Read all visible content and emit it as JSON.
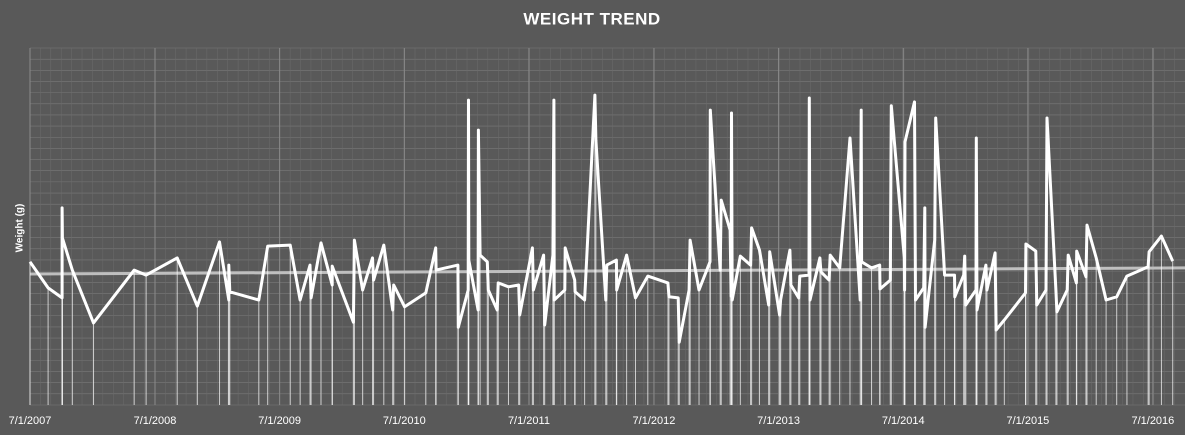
{
  "chart_data": {
    "type": "line",
    "title": "WEIGHT TREND",
    "y_label": "Weight (g)",
    "xlim": [
      "2007-07-01",
      "2016-10-03"
    ],
    "xticks": [
      {
        "value": "2007-07-01",
        "label": "7/1/2007"
      },
      {
        "value": "2008-07-01",
        "label": "7/1/2008"
      },
      {
        "value": "2009-07-01",
        "label": "7/1/2009"
      },
      {
        "value": "2010-07-01",
        "label": "7/1/2010"
      },
      {
        "value": "2011-07-01",
        "label": "7/1/2011"
      },
      {
        "value": "2012-07-01",
        "label": "7/1/2012"
      },
      {
        "value": "2013-07-01",
        "label": "7/1/2013"
      },
      {
        "value": "2014-07-01",
        "label": "7/1/2014"
      },
      {
        "value": "2015-07-01",
        "label": "7/1/2015"
      },
      {
        "value": "2016-07-01",
        "label": "7/1/2016"
      }
    ],
    "ylim": [
      0,
      100
    ],
    "grid": true,
    "drop_lines": true,
    "series": [
      {
        "color": "#ffffff",
        "x": [
          "2007-07-01",
          "2007-08-23",
          "2007-10-03",
          "2007-10-03",
          "2007-10-04",
          "2007-11-02",
          "2008-01-03",
          "2008-05-01",
          "2008-06-05",
          "2008-09-04",
          "2008-11-02",
          "2009-01-06",
          "2009-02-02",
          "2009-02-02",
          "2009-02-05",
          "2009-05-01",
          "2009-05-27",
          "2009-08-01",
          "2009-08-30",
          "2009-09-28",
          "2009-10-01",
          "2009-10-30",
          "2009-12-02",
          "2009-12-02",
          "2010-02-02",
          "2010-02-05",
          "2010-03-01",
          "2010-03-30",
          "2010-04-02",
          "2010-05-02",
          "2010-05-28",
          "2010-05-31",
          "2010-07-02",
          "2010-09-02",
          "2010-10-01",
          "2010-10-02",
          "2010-12-05",
          "2010-12-06",
          "2011-01-04",
          "2011-01-05",
          "2011-01-06",
          "2011-02-02",
          "2011-02-03",
          "2011-02-08",
          "2011-03-01",
          "2011-03-04",
          "2011-03-30",
          "2011-04-02",
          "2011-05-02",
          "2011-06-01",
          "2011-06-04",
          "2011-07-11",
          "2011-07-14",
          "2011-08-13",
          "2011-08-16",
          "2011-09-09",
          "2011-09-12",
          "2011-09-13",
          "2011-10-14",
          "2011-10-15",
          "2011-11-12",
          "2011-11-13",
          "2011-12-11",
          "2012-01-10",
          "2012-01-13",
          "2012-02-11",
          "2012-02-14",
          "2012-03-13",
          "2012-03-14",
          "2012-04-12",
          "2012-05-08",
          "2012-06-13",
          "2012-08-11",
          "2012-08-14",
          "2012-09-10",
          "2012-09-13",
          "2012-10-12",
          "2012-10-15",
          "2012-11-10",
          "2012-12-12",
          "2012-12-13",
          "2013-01-11",
          "2013-01-14",
          "2013-02-09",
          "2013-02-12",
          "2013-02-13",
          "2013-02-15",
          "2013-03-11",
          "2013-04-10",
          "2013-04-13",
          "2013-05-06",
          "2013-06-02",
          "2013-06-05",
          "2013-07-04",
          "2013-07-07",
          "2013-08-03",
          "2013-08-06",
          "2013-08-29",
          "2013-09-01",
          "2013-09-28",
          "2013-09-29",
          "2013-10-01",
          "2013-10-30",
          "2013-11-02",
          "2013-11-26",
          "2013-11-29",
          "2013-12-27",
          "2014-01-26",
          "2014-02-25",
          "2014-02-28",
          "2014-03-01",
          "2014-03-30",
          "2014-04-23",
          "2014-04-24",
          "2014-05-24",
          "2014-05-27",
          "2014-07-04",
          "2014-07-05",
          "2014-07-06",
          "2014-08-03",
          "2014-08-06",
          "2014-08-30",
          "2014-09-02",
          "2014-09-03",
          "2014-10-01",
          "2014-10-04",
          "2014-10-30",
          "2014-11-28",
          "2014-11-29",
          "2014-12-25",
          "2014-12-28",
          "2014-12-31",
          "2015-01-30",
          "2015-01-31",
          "2015-02-02",
          "2015-02-28",
          "2015-03-03",
          "2015-03-27",
          "2015-03-30",
          "2015-04-23",
          "2015-06-24",
          "2015-06-25",
          "2015-07-24",
          "2015-07-27",
          "2015-08-23",
          "2015-08-26",
          "2015-09-21",
          "2015-09-24",
          "2015-10-24",
          "2015-10-27",
          "2015-11-20",
          "2015-11-21",
          "2015-12-18",
          "2015-12-21",
          "2016-01-17",
          "2016-02-15",
          "2016-03-17",
          "2016-04-16",
          "2016-06-17",
          "2016-06-20",
          "2016-07-26",
          "2016-08-28"
        ],
        "values": [
          40.1,
          32.8,
          30.0,
          55.2,
          46.8,
          37.8,
          23.0,
          37.8,
          36.4,
          41.2,
          27.7,
          45.7,
          29.4,
          39.2,
          31.7,
          29.4,
          44.5,
          44.8,
          29.4,
          39.2,
          30.0,
          45.4,
          33.6,
          38.9,
          23.2,
          46.2,
          32.2,
          41.2,
          35.0,
          44.8,
          26.6,
          33.6,
          27.5,
          31.4,
          44.0,
          37.8,
          39.2,
          21.8,
          32.2,
          85.4,
          40.6,
          26.6,
          77.0,
          42.0,
          40.1,
          32.2,
          26.6,
          34.2,
          33.1,
          33.6,
          25.2,
          44.0,
          32.2,
          42.0,
          22.4,
          42.0,
          85.4,
          29.4,
          32.2,
          44.0,
          35.0,
          31.7,
          29.4,
          86.8,
          74.2,
          29.4,
          39.2,
          40.6,
          32.2,
          42.0,
          30.0,
          36.1,
          34.2,
          30.3,
          30.0,
          17.6,
          32.2,
          46.2,
          32.2,
          40.1,
          82.6,
          37.8,
          57.4,
          49.0,
          30.5,
          81.8,
          29.4,
          41.7,
          39.2,
          49.6,
          43.4,
          28.0,
          42.9,
          25.2,
          29.4,
          43.4,
          33.6,
          30.0,
          36.1,
          36.4,
          86.0,
          29.4,
          41.2,
          37.3,
          35.0,
          42.0,
          38.4,
          74.8,
          29.4,
          82.6,
          40.1,
          38.4,
          39.2,
          32.5,
          35.0,
          83.8,
          41.2,
          32.2,
          73.7,
          84.9,
          29.4,
          32.8,
          55.2,
          21.8,
          46.2,
          80.4,
          36.4,
          36.4,
          30.3,
          36.4,
          41.7,
          28.0,
          32.2,
          74.8,
          26.6,
          39.2,
          32.2,
          42.6,
          21.0,
          23.8,
          31.4,
          45.1,
          43.1,
          28.0,
          32.2,
          80.4,
          32.2,
          26.1,
          32.2,
          42.0,
          34.2,
          43.1,
          35.9,
          50.4,
          41.2,
          29.4,
          30.3,
          36.1,
          38.7,
          42.9,
          47.3,
          40.3
        ]
      },
      {
        "color": "#bfbfbf",
        "x": [
          "2007-07-01",
          "2016-10-03"
        ],
        "values": [
          36.7,
          38.4
        ]
      }
    ]
  }
}
